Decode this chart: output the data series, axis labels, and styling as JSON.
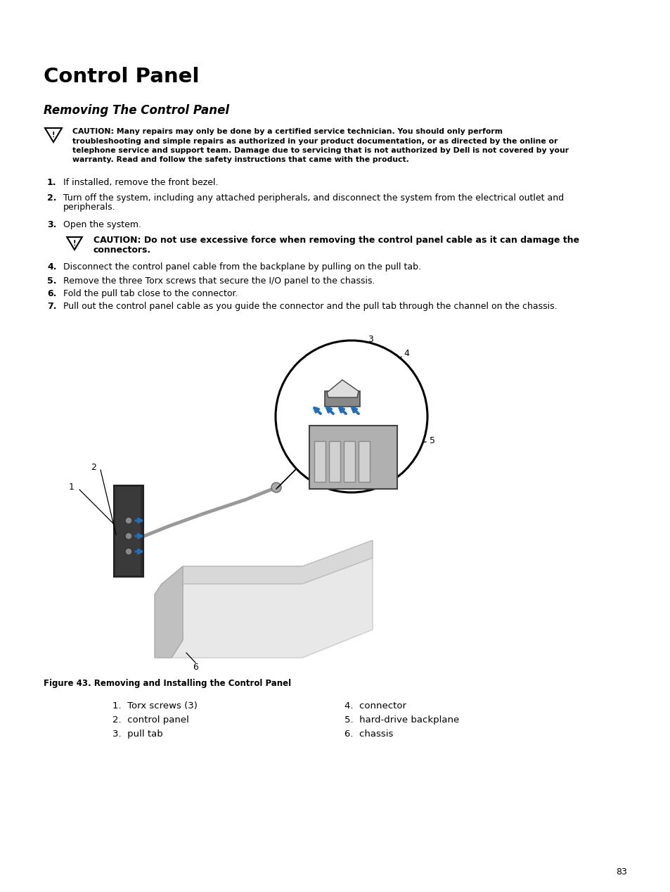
{
  "title": "Control Panel",
  "subtitle": "Removing The Control Panel",
  "caution1_lines": [
    "CAUTION: Many repairs may only be done by a certified service technician. You should only perform",
    "troubleshooting and simple repairs as authorized in your product documentation, or as directed by the online or",
    "telephone service and support team. Damage due to servicing that is not authorized by Dell is not covered by your",
    "warranty. Read and follow the safety instructions that came with the product."
  ],
  "step1": "If installed, remove the front bezel.",
  "step2a": "Turn off the system, including any attached peripherals, and disconnect the system from the electrical outlet and",
  "step2b": "peripherals.",
  "step3": "Open the system.",
  "caution2_line1": "CAUTION: Do not use excessive force when removing the control panel cable as it can damage the",
  "caution2_line2": "connectors.",
  "step4": "Disconnect the control panel cable from the backplane by pulling on the pull tab.",
  "step5": "Remove the three Torx screws that secure the I/O panel to the chassis.",
  "step6": "Fold the pull tab close to the connector.",
  "step7": "Pull out the control panel cable as you guide the connector and the pull tab through the channel on the chassis.",
  "figure_caption": "Figure 43. Removing and Installing the Control Panel",
  "legend_col1": [
    "1.  Torx screws (3)",
    "2.  control panel",
    "3.  pull tab"
  ],
  "legend_col2": [
    "4.  connector",
    "5.  hard-drive backplane",
    "6.  chassis"
  ],
  "page_number": "83",
  "bg_color": "#ffffff",
  "text_color": "#000000",
  "blue_color": "#1e6fbe",
  "gray_dark": "#444444",
  "gray_mid": "#888888",
  "gray_light": "#cccccc",
  "gray_chassis": "#d0d0d0"
}
